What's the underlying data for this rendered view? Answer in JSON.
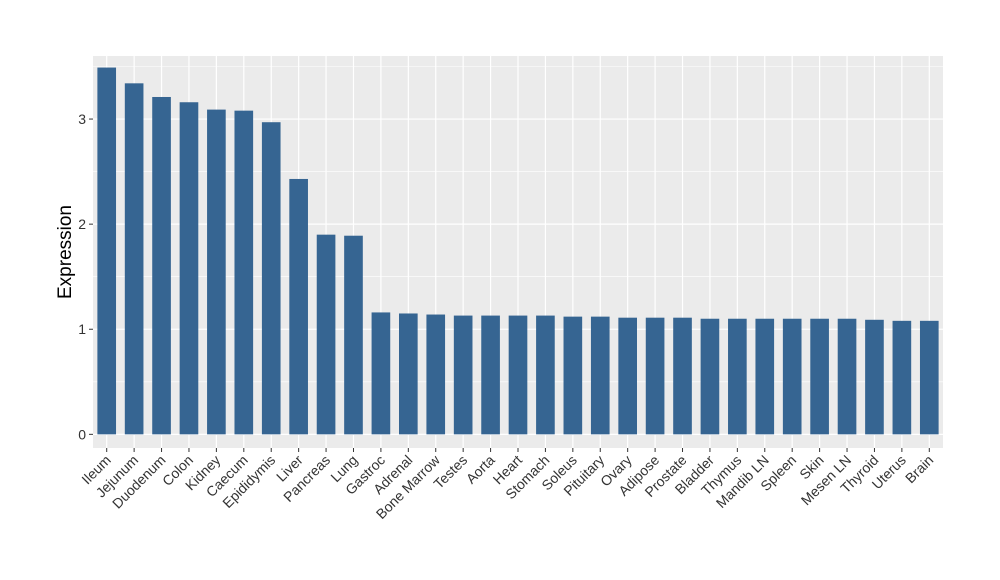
{
  "chart_data": {
    "type": "bar",
    "title": "",
    "xlabel": "",
    "ylabel": "Expression",
    "ylim": [
      -0.13,
      3.6
    ],
    "yticks": [
      0,
      1,
      2,
      3
    ],
    "grid": true,
    "categories": [
      "Ileum",
      "Jejunum",
      "Duodenum",
      "Colon",
      "Kidney",
      "Caecum",
      "Epididymis",
      "Liver",
      "Pancreas",
      "Lung",
      "Gastroc",
      "Adrenal",
      "Bone Marrow",
      "Testes",
      "Aorta",
      "Heart",
      "Stomach",
      "Soleus",
      "Pituitary",
      "Ovary",
      "Adipose",
      "Prostate",
      "Bladder",
      "Thymus",
      "Mandib LN",
      "Spleen",
      "Skin",
      "Mesen LN",
      "Thyroid",
      "Uterus",
      "Brain"
    ],
    "values": [
      3.49,
      3.34,
      3.21,
      3.16,
      3.09,
      3.08,
      2.97,
      2.43,
      1.9,
      1.89,
      1.16,
      1.15,
      1.14,
      1.13,
      1.13,
      1.13,
      1.13,
      1.12,
      1.12,
      1.11,
      1.11,
      1.11,
      1.1,
      1.1,
      1.1,
      1.1,
      1.1,
      1.1,
      1.09,
      1.08,
      1.08
    ],
    "bar_color": "#366592",
    "panel_color": "#EBEBEB",
    "grid_color": "#FFFFFF"
  }
}
